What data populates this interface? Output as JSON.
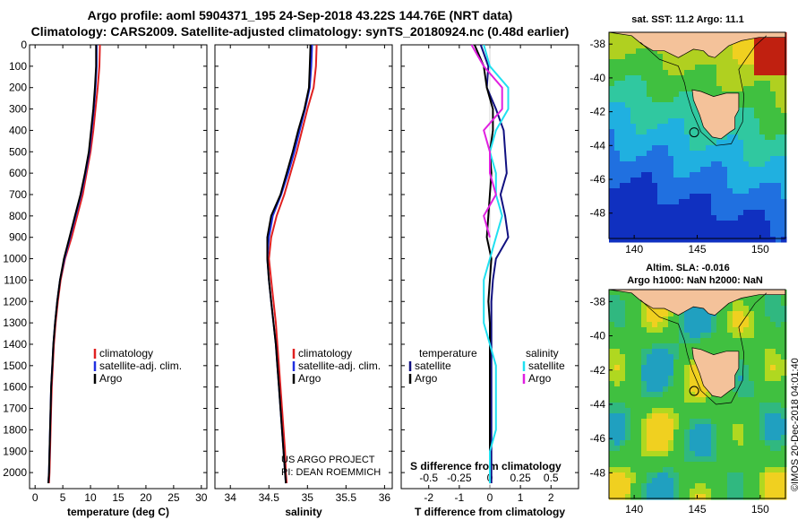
{
  "title_line1": "Argo profile: aoml 5904371_195 24-Sep-2018 43.22S 144.76E (NRT data)",
  "title_line2": "Climatology: CARS2009. Satellite-adjusted climatology: synTS_20180924.nc (0.48d earlier)",
  "chart_data": [
    {
      "type": "line",
      "id": "temperature",
      "xlabel": "temperature (deg C)",
      "ylabel": "",
      "xlim": [
        -1,
        31
      ],
      "ylim": [
        0,
        2075
      ],
      "y_reversed": true,
      "xticks": [
        0,
        5,
        10,
        15,
        20,
        25,
        30
      ],
      "xtick_labels": [
        "0",
        "5",
        "10",
        "15",
        "20",
        "25",
        "30"
      ],
      "yticks": [
        0,
        100,
        200,
        300,
        400,
        500,
        600,
        700,
        800,
        900,
        1000,
        1100,
        1200,
        1300,
        1400,
        1500,
        1600,
        1700,
        1800,
        1900,
        2000
      ],
      "ytick_labels": [
        "0",
        "100",
        "200",
        "300",
        "400",
        "500",
        "600",
        "700",
        "800",
        "900",
        "1000",
        "1100",
        "1200",
        "1300",
        "1400",
        "1500",
        "1600",
        "1700",
        "1800",
        "1900",
        "2000"
      ],
      "legend": [
        "climatology",
        "satellite-adj. clim.",
        "Argo"
      ],
      "series": [
        {
          "name": "climatology",
          "color": "#e02020",
          "x": [
            11.7,
            11.6,
            11.3,
            10.9,
            10.5,
            10.0,
            9.3,
            8.6,
            7.6,
            6.6,
            5.4,
            4.6,
            4.1,
            3.7,
            3.4,
            3.2,
            3.0,
            2.9,
            2.8,
            2.7,
            2.6,
            2.5
          ],
          "y": [
            0,
            100,
            200,
            300,
            400,
            500,
            600,
            700,
            800,
            900,
            1000,
            1100,
            1200,
            1300,
            1400,
            1500,
            1600,
            1700,
            1800,
            1900,
            2000,
            2050
          ]
        },
        {
          "name": "satellite-adj. clim.",
          "color": "#2030e0",
          "x": [
            11.1,
            11.1,
            10.9,
            10.6,
            10.2,
            9.8,
            9.1,
            8.3,
            7.3,
            6.3,
            5.3,
            4.5,
            4.0,
            3.6,
            3.3,
            3.1,
            2.9,
            2.8,
            2.7,
            2.6,
            2.5,
            2.4
          ],
          "y": [
            0,
            100,
            200,
            300,
            400,
            500,
            600,
            700,
            800,
            900,
            1000,
            1100,
            1200,
            1300,
            1400,
            1500,
            1600,
            1700,
            1800,
            1900,
            2000,
            2050
          ]
        },
        {
          "name": "Argo",
          "color": "#000000",
          "x": [
            11.0,
            11.0,
            10.8,
            10.5,
            10.1,
            9.7,
            9.0,
            8.2,
            7.2,
            6.2,
            5.2,
            4.5,
            4.0,
            3.6,
            3.3,
            3.1,
            2.9,
            2.8,
            2.7,
            2.6,
            2.5,
            2.4
          ],
          "y": [
            0,
            100,
            200,
            300,
            400,
            500,
            600,
            700,
            800,
            900,
            1000,
            1100,
            1200,
            1300,
            1400,
            1500,
            1600,
            1700,
            1800,
            1900,
            2000,
            2050
          ]
        }
      ]
    },
    {
      "type": "line",
      "id": "salinity",
      "xlabel": "salinity",
      "ylabel": "",
      "xlim": [
        33.8,
        36.1
      ],
      "ylim": [
        0,
        2075
      ],
      "y_reversed": true,
      "xticks": [
        34,
        34.5,
        35,
        35.5,
        36
      ],
      "xtick_labels": [
        "34",
        "34.5",
        "35",
        "35.5",
        "36"
      ],
      "legend": [
        "climatology",
        "satellite-adj. clim.",
        "Argo"
      ],
      "series": [
        {
          "name": "climatology",
          "color": "#e02020",
          "x": [
            35.12,
            35.11,
            35.08,
            35.0,
            34.93,
            34.86,
            34.78,
            34.7,
            34.6,
            34.53,
            34.5,
            34.53,
            34.56,
            34.59,
            34.61,
            34.63,
            34.65,
            34.67,
            34.69,
            34.71,
            34.72,
            34.73
          ],
          "y": [
            0,
            100,
            200,
            300,
            400,
            500,
            600,
            700,
            800,
            900,
            1000,
            1100,
            1200,
            1300,
            1400,
            1500,
            1600,
            1700,
            1800,
            1900,
            2000,
            2050
          ]
        },
        {
          "name": "satellite-adj. clim.",
          "color": "#2030e0",
          "x": [
            35.06,
            35.05,
            35.03,
            34.97,
            34.9,
            34.83,
            34.75,
            34.66,
            34.55,
            34.5,
            34.48,
            34.5,
            34.53,
            34.56,
            34.59,
            34.61,
            34.63,
            34.65,
            34.67,
            34.69,
            34.71,
            34.72
          ],
          "y": [
            0,
            100,
            200,
            300,
            400,
            500,
            600,
            700,
            800,
            900,
            1000,
            1100,
            1200,
            1300,
            1400,
            1500,
            1600,
            1700,
            1800,
            1900,
            2000,
            2050
          ]
        },
        {
          "name": "Argo",
          "color": "#000000",
          "x": [
            35.04,
            35.03,
            35.02,
            34.96,
            34.88,
            34.81,
            34.73,
            34.65,
            34.53,
            34.48,
            34.48,
            34.5,
            34.53,
            34.56,
            34.59,
            34.61,
            34.63,
            34.65,
            34.67,
            34.69,
            34.71,
            34.72
          ],
          "y": [
            0,
            100,
            200,
            300,
            400,
            500,
            600,
            700,
            800,
            900,
            1000,
            1100,
            1200,
            1300,
            1400,
            1500,
            1600,
            1700,
            1800,
            1900,
            2000,
            2050
          ]
        }
      ]
    },
    {
      "type": "line",
      "id": "difference",
      "xlabel": "T difference from climatology",
      "ylabel": "",
      "xlim": [
        -2.9,
        2.9
      ],
      "ylim": [
        0,
        2075
      ],
      "y_reversed": true,
      "xticks": [
        -2,
        -1,
        0,
        1,
        2
      ],
      "xtick_labels": [
        "-2",
        "-1",
        "0",
        "1",
        "2"
      ],
      "top_axis_label": "S difference from climatology",
      "top_xticks": [
        -0.5,
        -0.25,
        0,
        0.25,
        0.5
      ],
      "top_xtick_labels": [
        "-0.5",
        "-0.25",
        "0",
        "0.25",
        "0.5"
      ],
      "legend_temperature_title": "temperature",
      "legend_salinity_title": "salinity",
      "legend": [
        "satellite",
        "Argo",
        "satellite",
        "Argo"
      ],
      "series": [
        {
          "name": "satellite",
          "group": "temperature",
          "color": "#101080",
          "x": [
            -0.3,
            -0.05,
            -0.1,
            0.2,
            0.45,
            0.5,
            0.55,
            0.35,
            0.5,
            0.6,
            0.2,
            0.1,
            0.05,
            0.05,
            0.05,
            0.05,
            0.05,
            0.05,
            0.05,
            0.05,
            0.05,
            0.05
          ],
          "y": [
            0,
            100,
            200,
            300,
            400,
            500,
            600,
            700,
            800,
            900,
            1000,
            1100,
            1200,
            1300,
            1400,
            1500,
            1600,
            1700,
            1800,
            1900,
            2000,
            2050
          ]
        },
        {
          "name": "Argo",
          "group": "temperature",
          "color": "#000000",
          "x": [
            -0.5,
            -0.2,
            -0.1,
            0.1,
            0.1,
            0.0,
            0.05,
            0.0,
            -0.05,
            -0.1,
            0.05,
            0.0,
            -0.05,
            0.0,
            0.0,
            0.0,
            0.0,
            0.0,
            0.0,
            0.0,
            0.0,
            0.0
          ],
          "y": [
            0,
            100,
            200,
            300,
            400,
            500,
            600,
            700,
            800,
            900,
            1000,
            1100,
            1200,
            1300,
            1400,
            1500,
            1600,
            1700,
            1800,
            1900,
            2000,
            2050
          ]
        },
        {
          "name": "satellite",
          "group": "salinity",
          "color": "#20e0f0",
          "x": [
            -0.05,
            0.0,
            0.15,
            0.15,
            0.05,
            0.0,
            0.05,
            0.05,
            0.1,
            0.05,
            0.0,
            -0.05,
            -0.05,
            -0.05,
            0.0,
            0.05,
            0.05,
            0.05,
            0.05,
            0.0,
            0.0,
            0.0
          ],
          "y": [
            0,
            100,
            200,
            300,
            400,
            500,
            600,
            700,
            800,
            900,
            1000,
            1100,
            1200,
            1300,
            1400,
            1500,
            1600,
            1700,
            1800,
            1900,
            2000,
            2050
          ]
        },
        {
          "name": "Argo",
          "group": "salinity",
          "color": "#e020e0",
          "x": [
            -0.15,
            -0.05,
            0.1,
            0.1,
            -0.05,
            0.0,
            0.0,
            0.05,
            -0.05,
            0.0
          ],
          "y": [
            0,
            100,
            200,
            300,
            400,
            500,
            600,
            700,
            800,
            900
          ]
        }
      ]
    },
    {
      "type": "heatmap",
      "id": "sst_map",
      "title": "sat. SST: 11.2 Argo: 11.1",
      "xticks": [
        140,
        145,
        150
      ],
      "xtick_labels": [
        "140",
        "145",
        "150"
      ],
      "yticks": [
        -38,
        -40,
        -42,
        -44,
        -46,
        -48
      ],
      "ytick_labels": [
        "-38",
        "-40",
        "-42",
        "-44",
        "-46",
        "-48"
      ],
      "xlim": [
        138,
        152
      ],
      "ylim": [
        -49.5,
        -37.3
      ],
      "profile_lon": 144.76,
      "profile_lat": -43.22
    },
    {
      "type": "heatmap",
      "id": "sla_map",
      "title_line1": "Altim. SLA: -0.016",
      "title_line2": "Argo h1000: NaN h2000: NaN",
      "xticks": [
        140,
        145,
        150
      ],
      "xtick_labels": [
        "140",
        "145",
        "150"
      ],
      "yticks": [
        -38,
        -40,
        -42,
        -44,
        -46,
        -48
      ],
      "ytick_labels": [
        "-38",
        "-40",
        "-42",
        "-44",
        "-46",
        "-48"
      ],
      "xlim": [
        138,
        152
      ],
      "ylim": [
        -49.5,
        -37.3
      ],
      "profile_lon": 144.76,
      "profile_lat": -43.22
    }
  ],
  "credit_line1": "US ARGO PROJECT",
  "credit_line2": "PI: DEAN ROEMMICH",
  "timestamp": "©IMOS 20-Dec-2018 04:01:40",
  "colors": {
    "climatology": "#e02020",
    "satellite_adj": "#2030e0",
    "argo": "#000000",
    "land": "#f4c29a"
  }
}
